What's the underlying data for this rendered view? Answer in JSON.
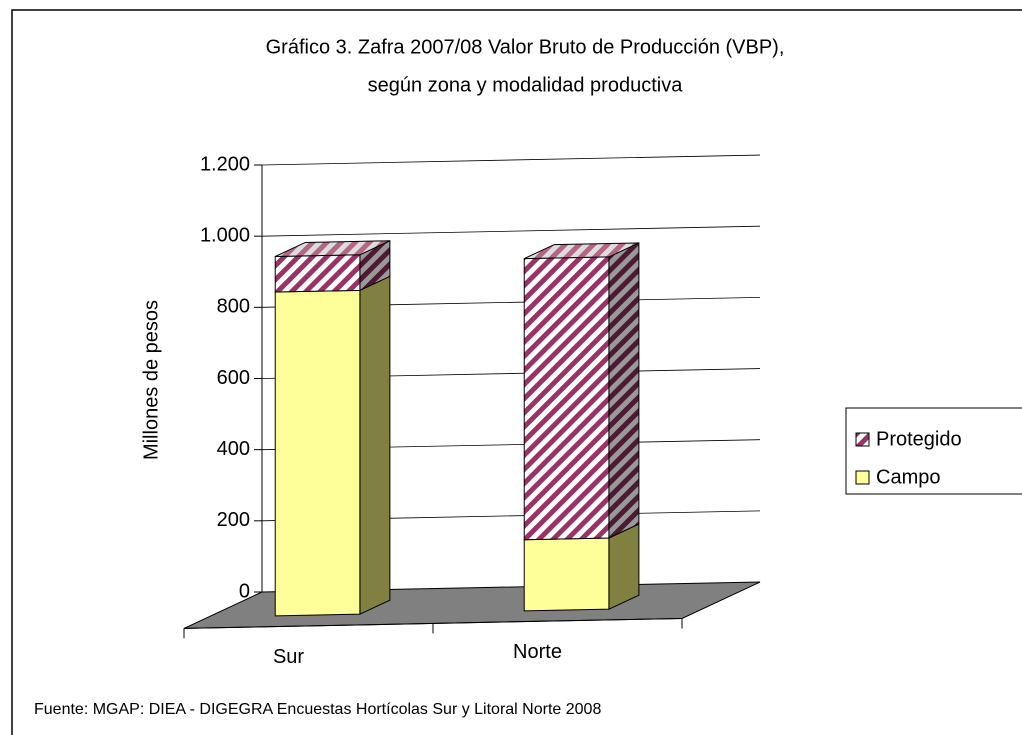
{
  "chart_data": {
    "type": "bar3d_stacked",
    "title": [
      "Gráfico 3. Zafra 2007/08 Valor Bruto de Producción (VBP),",
      "según zona y modalidad productiva"
    ],
    "ylabel": "Millones de pesos",
    "categories": [
      "Sur",
      "Norte"
    ],
    "series": [
      {
        "name": "Campo",
        "color": "#ffff99",
        "values": [
          910,
          200
        ]
      },
      {
        "name": "Protegido",
        "color": "#993366",
        "values": [
          100,
          790
        ]
      }
    ],
    "ylim": [
      0,
      1200
    ],
    "yticks": [
      0,
      200,
      400,
      600,
      800,
      {
        "value": 1000,
        "label": "1.000"
      },
      {
        "value": 1200,
        "label": "1.200"
      }
    ],
    "grid": true,
    "legend": "right",
    "source": "Fuente: MGAP: DIEA - DIGEGRA Encuestas Hortícolas Sur y Litoral Norte 2008"
  }
}
